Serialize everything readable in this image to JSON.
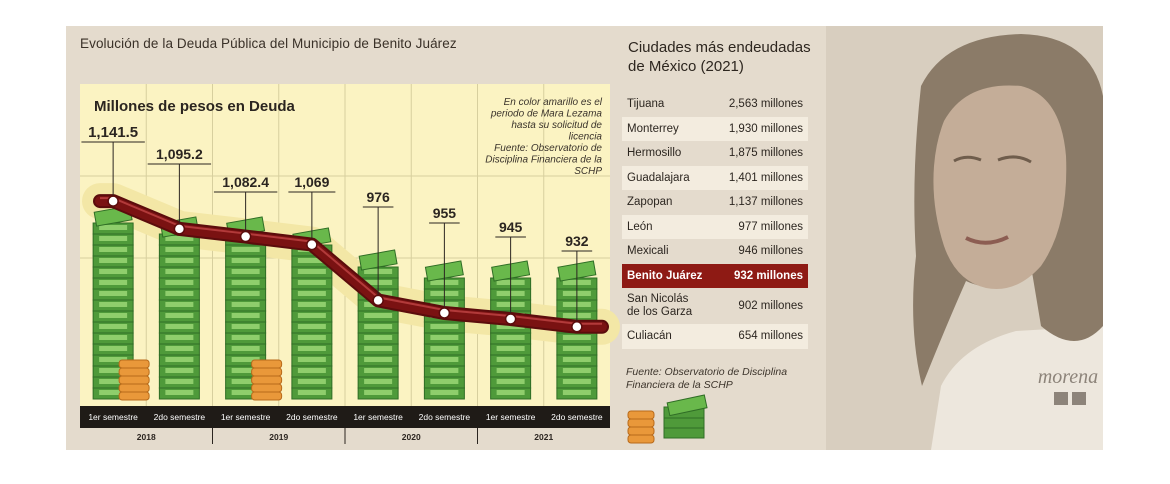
{
  "header": {
    "title": "Evolución de la Deuda Pública del Municipio de Benito Juárez"
  },
  "chart_data": {
    "type": "line",
    "title": "Millones de pesos en Deuda",
    "note": "En color amarillo es el periodo de Mara Lezama hasta su solicitud de licencia",
    "source": "Fuente: Observatorio de Disciplina Financiera de la SCHP",
    "x": [
      "1er semestre",
      "2do semestre",
      "1er semestre",
      "2do semestre",
      "1er semestre",
      "2do semestre",
      "1er semestre",
      "2do semestre"
    ],
    "years": [
      "2018",
      "2019",
      "2020",
      "2021"
    ],
    "series": [
      {
        "values": [
          1141.5,
          1095.2,
          1082.4,
          1069,
          976,
          955,
          945,
          932
        ]
      }
    ],
    "value_labels": [
      "1,141.5",
      "1,095.2",
      "1,082.4",
      "1,069",
      "976",
      "955",
      "945",
      "932"
    ],
    "highlight_range": [
      "2018 1er semestre",
      "2021 2do semestre"
    ],
    "colors": {
      "line": "#7a1212",
      "highlight": "#f3e7a6",
      "money": "#5aa83e",
      "coins": "#e89a3c"
    }
  },
  "ranking": {
    "title": "Ciudades más endeudadas de México (2021)",
    "rows": [
      {
        "city": "Tijuana",
        "value": "2,563 millones"
      },
      {
        "city": "Monterrey",
        "value": "1,930 millones"
      },
      {
        "city": "Hermosillo",
        "value": "1,875 millones"
      },
      {
        "city": "Guadalajara",
        "value": "1,401 millones"
      },
      {
        "city": "Zapopan",
        "value": "1,137 millones"
      },
      {
        "city": "León",
        "value": "977 millones"
      },
      {
        "city": "Mexicali",
        "value": "946 millones"
      },
      {
        "city": "Benito Juárez",
        "value": "932 millones",
        "highlight": true
      },
      {
        "city": "San Nicolás\nde los Garza",
        "value": "902 millones"
      },
      {
        "city": "Culiacán",
        "value": "654 millones"
      }
    ],
    "source": "Fuente: Observatorio de Disciplina Financiera de la SCHP"
  },
  "photo": {
    "logo_text": "morena",
    "colors": {
      "tint": "#cbbfae",
      "logo": "#8d847a"
    }
  }
}
